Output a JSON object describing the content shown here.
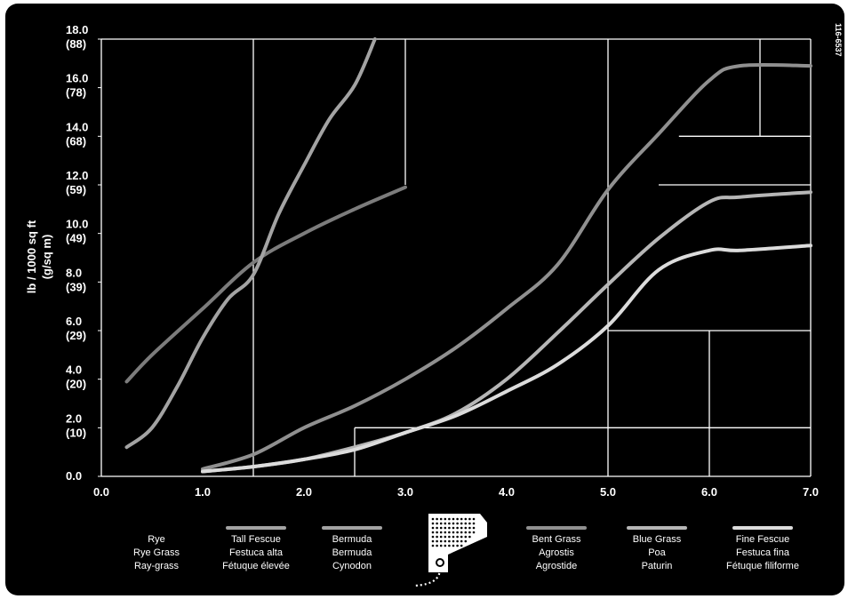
{
  "figure_ref": "116-6537",
  "chart_data": {
    "type": "line",
    "ylabel_lines": [
      "lb / 1000 sq ft",
      "(g/sq m)"
    ],
    "y_ticks": [
      {
        "v": 0.0,
        "l1": "0.0",
        "l2": ""
      },
      {
        "v": 2.0,
        "l1": "2.0",
        "l2": "(10)"
      },
      {
        "v": 4.0,
        "l1": "4.0",
        "l2": "(20)"
      },
      {
        "v": 6.0,
        "l1": "6.0",
        "l2": "(29)"
      },
      {
        "v": 8.0,
        "l1": "8.0",
        "l2": "(39)"
      },
      {
        "v": 10.0,
        "l1": "10.0",
        "l2": "(49)"
      },
      {
        "v": 12.0,
        "l1": "12.0",
        "l2": "(59)"
      },
      {
        "v": 14.0,
        "l1": "14.0",
        "l2": "(68)"
      },
      {
        "v": 16.0,
        "l1": "16.0",
        "l2": "(78)"
      },
      {
        "v": 18.0,
        "l1": "18.0",
        "l2": "(88)"
      }
    ],
    "x_ticks": [
      {
        "v": 0.0,
        "l": "0.0"
      },
      {
        "v": 1.0,
        "l": "1.0"
      },
      {
        "v": 2.0,
        "l": "2.0"
      },
      {
        "v": 3.0,
        "l": "3.0"
      },
      {
        "v": 4.0,
        "l": "4.0"
      },
      {
        "v": 5.0,
        "l": "5.0"
      },
      {
        "v": 6.0,
        "l": "6.0"
      },
      {
        "v": 7.0,
        "l": "7.0"
      }
    ],
    "xlim": [
      0,
      7
    ],
    "ylim": [
      0,
      18
    ],
    "grid": "partial white step gridlines",
    "series": [
      {
        "name": "Rye",
        "color": "#7c7c7c",
        "points": [
          [
            0.25,
            3.9
          ],
          [
            0.5,
            5.0
          ],
          [
            1.0,
            6.9
          ],
          [
            1.5,
            8.8
          ],
          [
            2.0,
            10.0
          ],
          [
            2.5,
            11.0
          ],
          [
            3.0,
            11.9
          ]
        ]
      },
      {
        "name": "Tall Fescue",
        "color": "#a3a3a3",
        "points": [
          [
            0.25,
            1.2
          ],
          [
            0.5,
            2.0
          ],
          [
            0.75,
            3.7
          ],
          [
            1.0,
            5.7
          ],
          [
            1.25,
            7.3
          ],
          [
            1.5,
            8.3
          ],
          [
            1.75,
            10.8
          ],
          [
            2.0,
            12.8
          ],
          [
            2.25,
            14.7
          ],
          [
            2.5,
            16.1
          ],
          [
            2.7,
            18.0
          ]
        ]
      },
      {
        "name": "Bent Grass",
        "color": "#909090",
        "points": [
          [
            1.0,
            0.3
          ],
          [
            1.5,
            0.9
          ],
          [
            2.0,
            2.0
          ],
          [
            2.5,
            2.9
          ],
          [
            3.0,
            4.0
          ],
          [
            3.5,
            5.3
          ],
          [
            4.0,
            6.9
          ],
          [
            4.5,
            8.7
          ],
          [
            5.0,
            11.8
          ],
          [
            5.5,
            14.1
          ],
          [
            6.0,
            16.3
          ],
          [
            6.3,
            16.9
          ],
          [
            7.0,
            16.9
          ]
        ]
      },
      {
        "name": "Blue Grass",
        "color": "#b6b6b6",
        "points": [
          [
            1.0,
            0.2
          ],
          [
            1.5,
            0.4
          ],
          [
            2.0,
            0.7
          ],
          [
            2.5,
            1.2
          ],
          [
            3.0,
            1.8
          ],
          [
            3.5,
            2.6
          ],
          [
            4.0,
            4.0
          ],
          [
            4.5,
            5.9
          ],
          [
            5.0,
            7.9
          ],
          [
            5.5,
            9.8
          ],
          [
            6.0,
            11.3
          ],
          [
            6.3,
            11.5
          ],
          [
            7.0,
            11.7
          ]
        ]
      },
      {
        "name": "Fine Fescue",
        "color": "#dcdcdc",
        "points": [
          [
            1.0,
            0.2
          ],
          [
            1.5,
            0.4
          ],
          [
            2.0,
            0.7
          ],
          [
            2.5,
            1.1
          ],
          [
            3.0,
            1.8
          ],
          [
            3.5,
            2.5
          ],
          [
            4.0,
            3.5
          ],
          [
            4.5,
            4.6
          ],
          [
            5.0,
            6.2
          ],
          [
            5.5,
            8.5
          ],
          [
            6.0,
            9.3
          ],
          [
            6.3,
            9.3
          ],
          [
            7.0,
            9.5
          ]
        ]
      }
    ],
    "legend": [
      {
        "lines": [
          "Rye",
          "Rye Grass",
          "Ray-grass"
        ],
        "color": ""
      },
      {
        "lines": [
          "Tall Fescue",
          "Festuca alta",
          "Fétuque élevée"
        ],
        "color": "#a3a3a3"
      },
      {
        "lines": [
          "Bermuda",
          "Bermuda",
          "Cynodon"
        ],
        "color": "#a3a3a3"
      },
      {
        "lines": [
          "Bent Grass",
          "Agrostis",
          "Agrostide"
        ],
        "color": "#909090"
      },
      {
        "lines": [
          "Blue Grass",
          "Poa",
          "Paturin"
        ],
        "color": "#b6b6b6"
      },
      {
        "lines": [
          "Fine Fescue",
          "Festuca fina",
          "Fétuque filiforme"
        ],
        "color": "#dcdcdc"
      }
    ],
    "legend_icon": "spreader-hopper-icon"
  }
}
